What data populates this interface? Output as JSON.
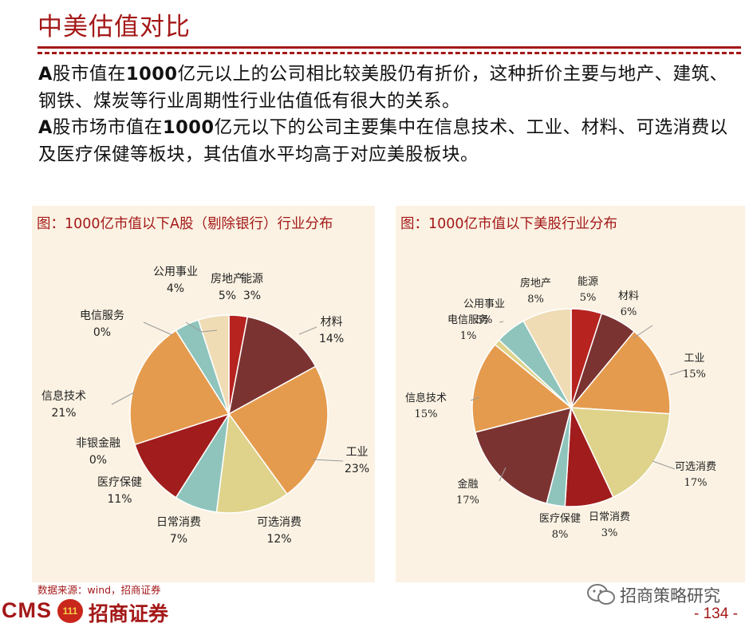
{
  "header": {
    "title": "中美估值对比"
  },
  "body": {
    "para1_bold": "A",
    "para1_a": "股市值在",
    "para1_bold2": "1000",
    "para1_b": "亿元以上的公司相比较美股仍有折价，这种折价主要与地产、建筑、钢铁、煤炭等行业周期性行业估值低有很大的关系。",
    "para2_bold": "A",
    "para2_a": "股市场市值在",
    "para2_bold2": "1000",
    "para2_b": "亿元以下的公司主要集中在信息技术、工业、材料、可选消费以及医疗保健等板块，其估值水平均高于对应美股板块。"
  },
  "chart_data": [
    {
      "type": "pie",
      "title": "图：1000亿市值以下A股（剔除银行）行业分布",
      "categories": [
        "能源",
        "材料",
        "工业",
        "可选消费",
        "日常消费",
        "医疗保健",
        "非银金融",
        "信息技术",
        "电信服务",
        "公用事业",
        "房地产"
      ],
      "values": [
        3,
        14,
        23,
        12,
        7,
        11,
        0,
        21,
        0,
        4,
        5
      ],
      "labels": [
        "3%",
        "14%",
        "23%",
        "12%",
        "7%",
        "11%",
        "0%",
        "21%",
        "0%",
        "4%",
        "5%"
      ],
      "colors": [
        "#b7231f",
        "#7b3331",
        "#e59b4e",
        "#dfd38c",
        "#8ec4bc",
        "#a11c1c",
        "#cd6a3a",
        "#e59b4e",
        "#dfd38c",
        "#8ec4bc",
        "#efdcb5"
      ]
    },
    {
      "type": "pie",
      "title": "图：1000亿市值以下美股行业分布",
      "categories": [
        "能源",
        "材料",
        "工业",
        "可选消费",
        "医疗保健",
        "日常消费",
        "金融",
        "信息技术",
        "电信服务",
        "公用事业",
        "房地产"
      ],
      "values": [
        5,
        6,
        15,
        17,
        8,
        3,
        17,
        15,
        1,
        5,
        8
      ],
      "labels": [
        "5%",
        "6%",
        "15%",
        "17%",
        "8%",
        "3%",
        "17%",
        "15%",
        "1%",
        "5%",
        "8%"
      ],
      "colors": [
        "#b7231f",
        "#7b3331",
        "#e59b4e",
        "#dfd38c",
        "#a11c1c",
        "#8ec4bc",
        "#7b3331",
        "#e59b4e",
        "#dfd38c",
        "#8ec4bc",
        "#efdcb5"
      ]
    }
  ],
  "footer": {
    "source": "数据来源：wind，招商证券",
    "logo_cms": "CMS",
    "logo_badge": "111",
    "logo_name": "招商证券",
    "wechat": "招商策略研究",
    "page": "- 134 -"
  }
}
